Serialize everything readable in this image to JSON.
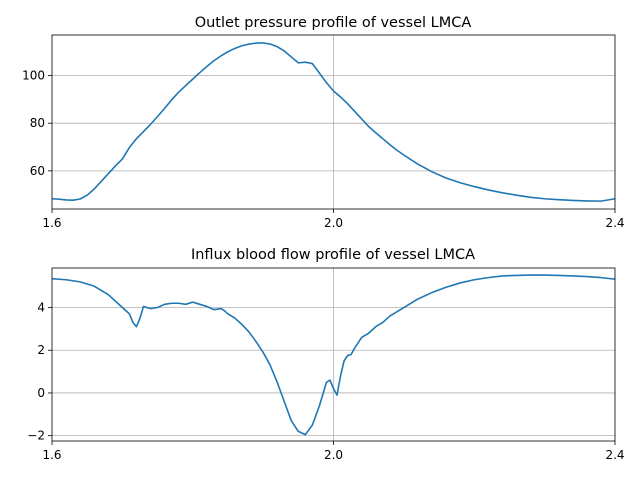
{
  "chart_data": [
    {
      "type": "line",
      "title": "Outlet pressure profile of vessel LMCA",
      "xlim": [
        1.6,
        2.4
      ],
      "ylim": [
        44,
        117
      ],
      "xticks": [
        "1.6",
        "2.0",
        "2.4"
      ],
      "yticks": [
        "60",
        "80",
        "100"
      ],
      "grid": "y at each tick; x at 2.0 only",
      "series": [
        {
          "color": "#1f77b4",
          "x": [
            1.6,
            1.61,
            1.62,
            1.63,
            1.64,
            1.65,
            1.66,
            1.67,
            1.68,
            1.69,
            1.7,
            1.71,
            1.72,
            1.73,
            1.74,
            1.75,
            1.76,
            1.77,
            1.78,
            1.79,
            1.8,
            1.81,
            1.82,
            1.83,
            1.84,
            1.85,
            1.86,
            1.87,
            1.88,
            1.89,
            1.9,
            1.91,
            1.92,
            1.93,
            1.94,
            1.95,
            1.96,
            1.97,
            1.98,
            1.99,
            2.0,
            2.01,
            2.02,
            2.03,
            2.04,
            2.05,
            2.06,
            2.07,
            2.08,
            2.09,
            2.1,
            2.12,
            2.14,
            2.16,
            2.18,
            2.2,
            2.22,
            2.24,
            2.26,
            2.28,
            2.3,
            2.32,
            2.34,
            2.36,
            2.38,
            2.4
          ],
          "y": [
            48.3,
            48.1,
            47.8,
            47.7,
            48.2,
            49.8,
            52.4,
            55.6,
            58.8,
            62.0,
            65.0,
            69.8,
            73.5,
            76.5,
            79.5,
            82.8,
            86.2,
            89.8,
            93.0,
            95.8,
            98.5,
            101.2,
            103.8,
            106.2,
            108.2,
            110.0,
            111.4,
            112.5,
            113.2,
            113.6,
            113.7,
            113.2,
            112.1,
            110.3,
            107.8,
            105.3,
            105.6,
            105.0,
            101.0,
            97.0,
            93.5,
            91.0,
            88.2,
            85.0,
            81.8,
            78.6,
            76.0,
            73.5,
            71.0,
            68.7,
            66.6,
            62.8,
            59.6,
            57.0,
            55.0,
            53.4,
            52.0,
            50.8,
            49.8,
            48.9,
            48.3,
            47.9,
            47.6,
            47.4,
            47.3,
            48.3
          ]
        }
      ]
    },
    {
      "type": "line",
      "title": "Influx blood flow profile of vessel LMCA",
      "xlim": [
        1.6,
        2.4
      ],
      "ylim": [
        -2.25,
        5.85
      ],
      "xticks": [
        "1.6",
        "2.0",
        "2.4"
      ],
      "yticks": [
        "−2",
        "0",
        "2",
        "4"
      ],
      "grid": "y at each tick; x at 2.0 only",
      "series": [
        {
          "color": "#1f77b4",
          "x": [
            1.6,
            1.62,
            1.64,
            1.66,
            1.68,
            1.7,
            1.71,
            1.715,
            1.72,
            1.725,
            1.73,
            1.74,
            1.75,
            1.76,
            1.77,
            1.78,
            1.79,
            1.8,
            1.81,
            1.82,
            1.83,
            1.84,
            1.845,
            1.85,
            1.86,
            1.87,
            1.88,
            1.89,
            1.9,
            1.91,
            1.92,
            1.93,
            1.94,
            1.95,
            1.96,
            1.97,
            1.98,
            1.99,
            1.995,
            2.0,
            2.005,
            2.01,
            2.015,
            2.02,
            2.025,
            2.03,
            2.04,
            2.05,
            2.06,
            2.07,
            2.08,
            2.09,
            2.1,
            2.12,
            2.14,
            2.16,
            2.18,
            2.2,
            2.22,
            2.24,
            2.26,
            2.28,
            2.3,
            2.32,
            2.34,
            2.36,
            2.38,
            2.4
          ],
          "y": [
            5.35,
            5.3,
            5.2,
            5.0,
            4.6,
            4.0,
            3.7,
            3.3,
            3.1,
            3.5,
            4.05,
            3.95,
            4.0,
            4.15,
            4.2,
            4.2,
            4.15,
            4.25,
            4.15,
            4.05,
            3.9,
            3.95,
            3.85,
            3.7,
            3.5,
            3.2,
            2.85,
            2.4,
            1.9,
            1.3,
            0.5,
            -0.4,
            -1.3,
            -1.8,
            -1.95,
            -1.5,
            -0.6,
            0.5,
            0.6,
            0.2,
            -0.1,
            0.8,
            1.5,
            1.75,
            1.8,
            2.1,
            2.6,
            2.8,
            3.1,
            3.3,
            3.6,
            3.8,
            4.0,
            4.4,
            4.7,
            4.95,
            5.15,
            5.3,
            5.4,
            5.48,
            5.5,
            5.52,
            5.52,
            5.5,
            5.48,
            5.45,
            5.4,
            5.33
          ]
        }
      ]
    }
  ]
}
